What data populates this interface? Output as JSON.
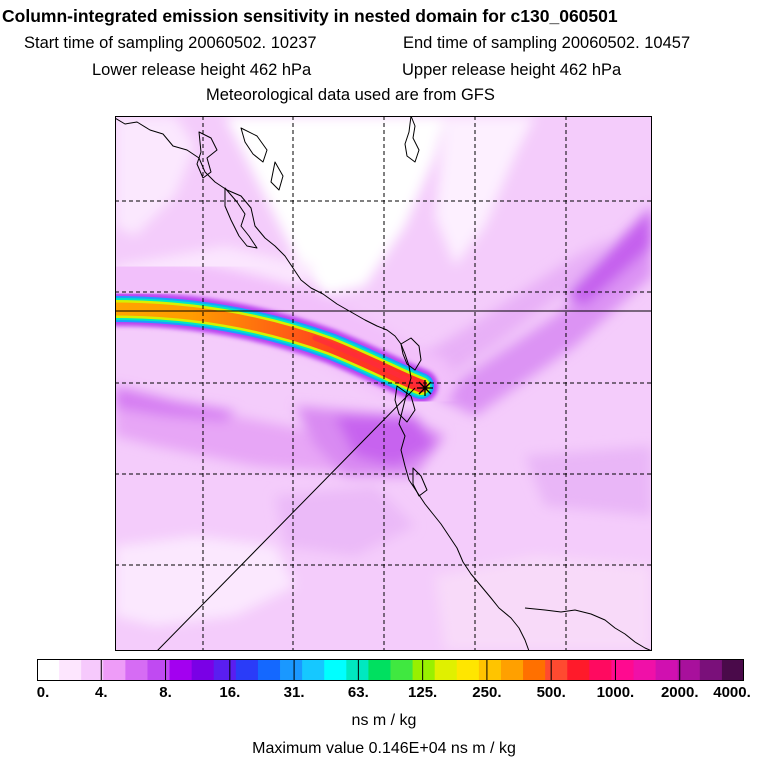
{
  "header": {
    "title": "Column-integrated emission sensitivity in nested domain for c130_060501",
    "start_time": "Start time of sampling 20060502. 10237",
    "end_time": "End time of sampling 20060502. 10457",
    "lower_release": "Lower release height  462 hPa",
    "upper_release": "Upper release height  462 hPa",
    "met_data": "Meteorological data used are from GFS"
  },
  "map": {
    "gridlines": "dashed",
    "release_marker": "star-marker",
    "plume_colors": {
      "low": "#f6d6fb",
      "mid": "#d98cf2",
      "high": "#c44cf0",
      "core": "#ff7a00"
    }
  },
  "colorbar": {
    "tick_labels": [
      "0.",
      "4.",
      "8.",
      "16.",
      "31.",
      "63.",
      "125.",
      "250.",
      "500.",
      "1000.",
      "2000.",
      "4000."
    ],
    "colors": [
      "#ffffff",
      "#fde6fe",
      "#f6c9fc",
      "#ee9cf8",
      "#d66cf4",
      "#c04af2",
      "#a300f0",
      "#7a00e6",
      "#5a1ef0",
      "#2a3cf8",
      "#1468ff",
      "#1a98ff",
      "#16c8ff",
      "#00ffff",
      "#00e8c0",
      "#00e060",
      "#40e840",
      "#98f000",
      "#e0f000",
      "#ffe600",
      "#ffc400",
      "#ffa000",
      "#ff7000",
      "#ff4a30",
      "#ff1a2a",
      "#ff0a60",
      "#ff0a90",
      "#f010a8",
      "#d010b0",
      "#a8109c",
      "#7a107a",
      "#4a0a4a"
    ]
  },
  "units": "ns m / kg",
  "max_value": "Maximum value  0.146E+04 ns m / kg"
}
